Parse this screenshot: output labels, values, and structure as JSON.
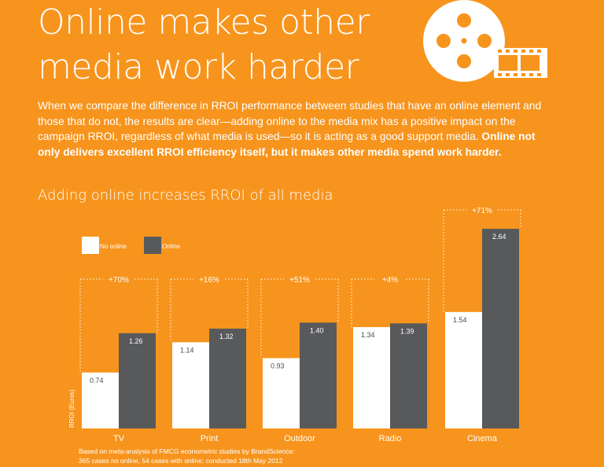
{
  "header": {
    "title_line1": "Online makes other",
    "title_line2": "media work harder"
  },
  "intro": {
    "text_plain": "When we compare the difference in RROI performance between studies that have an online element and those that do not, the results are clear—adding online to the media mix has a positive impact on the campaign RROI, regardless of what media is used—so it is acting as a good support media. ",
    "text_bold": "Online not only delivers excellent RROI efficiency itself, but it makes other media spend work harder."
  },
  "colors": {
    "background": "#F7941D",
    "no_online": "#FFFFFF",
    "online": "#58595B",
    "text": "#FFFFFF"
  },
  "chart_data": {
    "type": "bar",
    "title": "Adding online increases RROI of all media",
    "ylabel": "RROI (Euros)",
    "xlabel": "",
    "categories": [
      "TV",
      "Print",
      "Outdoor",
      "Radio",
      "Cinema"
    ],
    "series": [
      {
        "name": "No online",
        "values": [
          0.74,
          1.14,
          0.93,
          1.34,
          1.54
        ]
      },
      {
        "name": "Online",
        "values": [
          1.26,
          1.32,
          1.4,
          1.39,
          2.64
        ]
      }
    ],
    "value_labels": {
      "No online": [
        "0.74",
        "1.14",
        "0.93",
        "1.34",
        "1.54"
      ],
      "Online": [
        "1.26",
        "1.32",
        "1.40",
        "1.39",
        "2.64"
      ]
    },
    "uplift_labels": [
      "+70%",
      "+16%",
      "+51%",
      "+4%",
      "+71%"
    ],
    "ylim": [
      0,
      2.64
    ],
    "grid": false,
    "legend": "top-left"
  },
  "footnote": {
    "line1": "Based on meta-analysis of FMCG econometric studies by BrandScience:",
    "line2": "365 cases no online, 54 cases with online; conducted 18th May 2012"
  },
  "icons": {
    "logo": "film-reel-icon"
  }
}
